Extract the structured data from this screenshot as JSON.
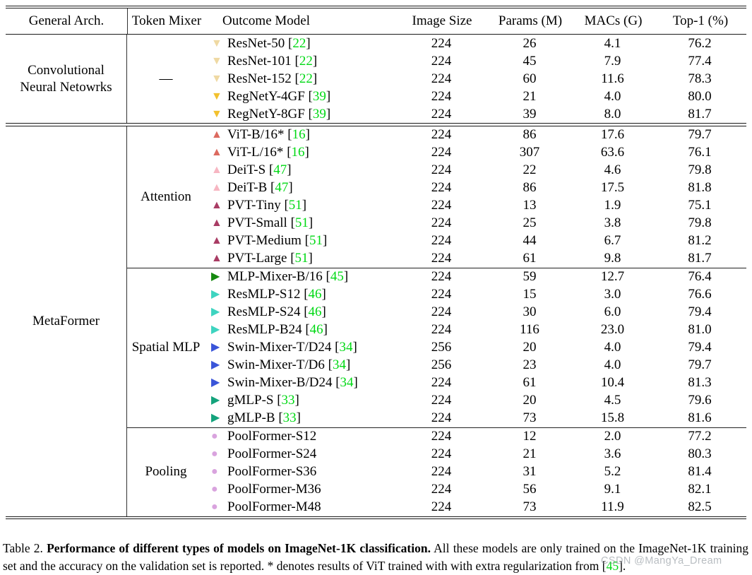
{
  "table": {
    "header": {
      "cells": [
        "General Arch.",
        "Token Mixer",
        "Outcome Model",
        "Image Size",
        "Params (M)",
        "MACs (G)",
        "Top-1 (%)"
      ]
    },
    "groups": [
      {
        "arch": "Convolutional Neural Netowrks",
        "subgroups": [
          {
            "mixer": "—",
            "rows": [
              {
                "marker": "triangle-down",
                "color": "#efd9a3",
                "model": "ResNet-50",
                "cite": "22",
                "size": "224",
                "params": "26",
                "macs": "4.1",
                "top1": "76.2"
              },
              {
                "marker": "triangle-down",
                "color": "#efd9a3",
                "model": "ResNet-101",
                "cite": "22",
                "size": "224",
                "params": "45",
                "macs": "7.9",
                "top1": "77.4"
              },
              {
                "marker": "triangle-down",
                "color": "#efd9a3",
                "model": "ResNet-152",
                "cite": "22",
                "size": "224",
                "params": "60",
                "macs": "11.6",
                "top1": "78.3"
              },
              {
                "marker": "triangle-down",
                "color": "#f2c12e",
                "model": "RegNetY-4GF",
                "cite": "39",
                "size": "224",
                "params": "21",
                "macs": "4.0",
                "top1": "80.0"
              },
              {
                "marker": "triangle-down",
                "color": "#f2c12e",
                "model": "RegNetY-8GF",
                "cite": "39",
                "size": "224",
                "params": "39",
                "macs": "8.0",
                "top1": "81.7"
              }
            ]
          }
        ]
      },
      {
        "arch": "MetaFormer",
        "subgroups": [
          {
            "mixer": "Attention",
            "rows": [
              {
                "marker": "triangle-up",
                "color": "#dc6a5f",
                "model": "ViT-B/16*",
                "cite": "16",
                "size": "224",
                "params": "86",
                "macs": "17.6",
                "top1": "79.7"
              },
              {
                "marker": "triangle-up",
                "color": "#dc6a5f",
                "model": "ViT-L/16*",
                "cite": "16",
                "size": "224",
                "params": "307",
                "macs": "63.6",
                "top1": "76.1"
              },
              {
                "marker": "triangle-up",
                "color": "#f7b6c2",
                "model": "DeiT-S",
                "cite": "47",
                "size": "224",
                "params": "22",
                "macs": "4.6",
                "top1": "79.8"
              },
              {
                "marker": "triangle-up",
                "color": "#f7b6c2",
                "model": "DeiT-B",
                "cite": "47",
                "size": "224",
                "params": "86",
                "macs": "17.5",
                "top1": "81.8"
              },
              {
                "marker": "triangle-up",
                "color": "#a93c64",
                "model": "PVT-Tiny",
                "cite": "51",
                "size": "224",
                "params": "13",
                "macs": "1.9",
                "top1": "75.1"
              },
              {
                "marker": "triangle-up",
                "color": "#a93c64",
                "model": "PVT-Small",
                "cite": "51",
                "size": "224",
                "params": "25",
                "macs": "3.8",
                "top1": "79.8"
              },
              {
                "marker": "triangle-up",
                "color": "#a93c64",
                "model": "PVT-Medium",
                "cite": "51",
                "size": "224",
                "params": "44",
                "macs": "6.7",
                "top1": "81.2"
              },
              {
                "marker": "triangle-up",
                "color": "#a93c64",
                "model": "PVT-Large",
                "cite": "51",
                "size": "224",
                "params": "61",
                "macs": "9.8",
                "top1": "81.7"
              }
            ]
          },
          {
            "mixer": "Spatial MLP",
            "rows": [
              {
                "marker": "triangle-right",
                "color": "#16890f",
                "model": "MLP-Mixer-B/16",
                "cite": "45",
                "size": "224",
                "params": "59",
                "macs": "12.7",
                "top1": "76.4"
              },
              {
                "marker": "triangle-right",
                "color": "#3ed4c0",
                "model": "ResMLP-S12",
                "cite": "46",
                "size": "224",
                "params": "15",
                "macs": "3.0",
                "top1": "76.6"
              },
              {
                "marker": "triangle-right",
                "color": "#3ed4c0",
                "model": "ResMLP-S24",
                "cite": "46",
                "size": "224",
                "params": "30",
                "macs": "6.0",
                "top1": "79.4"
              },
              {
                "marker": "triangle-right",
                "color": "#3ed4c0",
                "model": "ResMLP-B24",
                "cite": "46",
                "size": "224",
                "params": "116",
                "macs": "23.0",
                "top1": "81.0"
              },
              {
                "marker": "triangle-right",
                "color": "#3a55d9",
                "model": "Swin-Mixer-T/D24",
                "cite": "34",
                "size": "256",
                "params": "20",
                "macs": "4.0",
                "top1": "79.4"
              },
              {
                "marker": "triangle-right",
                "color": "#3a55d9",
                "model": "Swin-Mixer-T/D6",
                "cite": "34",
                "size": "256",
                "params": "23",
                "macs": "4.0",
                "top1": "79.7"
              },
              {
                "marker": "triangle-right",
                "color": "#3a55d9",
                "model": "Swin-Mixer-B/D24",
                "cite": "34",
                "size": "224",
                "params": "61",
                "macs": "10.4",
                "top1": "81.3"
              },
              {
                "marker": "triangle-right",
                "color": "#14a37c",
                "model": "gMLP-S",
                "cite": "33",
                "size": "224",
                "params": "20",
                "macs": "4.5",
                "top1": "79.6"
              },
              {
                "marker": "triangle-right",
                "color": "#14a37c",
                "model": "gMLP-B",
                "cite": "33",
                "size": "224",
                "params": "73",
                "macs": "15.8",
                "top1": "81.6"
              }
            ]
          },
          {
            "mixer": "Pooling",
            "rows": [
              {
                "marker": "circle",
                "color": "#d9a3de",
                "model": "PoolFormer-S12",
                "cite": "",
                "size": "224",
                "params": "12",
                "macs": "2.0",
                "top1": "77.2"
              },
              {
                "marker": "circle",
                "color": "#d9a3de",
                "model": "PoolFormer-S24",
                "cite": "",
                "size": "224",
                "params": "21",
                "macs": "3.6",
                "top1": "80.3"
              },
              {
                "marker": "circle",
                "color": "#d9a3de",
                "model": "PoolFormer-S36",
                "cite": "",
                "size": "224",
                "params": "31",
                "macs": "5.2",
                "top1": "81.4"
              },
              {
                "marker": "circle",
                "color": "#d9a3de",
                "model": "PoolFormer-M36",
                "cite": "",
                "size": "224",
                "params": "56",
                "macs": "9.1",
                "top1": "82.1"
              },
              {
                "marker": "circle",
                "color": "#d9a3de",
                "model": "PoolFormer-M48",
                "cite": "",
                "size": "224",
                "params": "73",
                "macs": "11.9",
                "top1": "82.5"
              }
            ]
          }
        ]
      }
    ]
  },
  "caption": {
    "label": "Table 2. ",
    "bold": "Performance of different types of models on ImageNet-1K classification.",
    "rest": " All these models are only trained on the ImageNet-1K training set and the accuracy on the validation set is reported. * denotes results of ViT trained with with extra regularization from [",
    "cite": "45",
    "end": "]."
  },
  "watermark": "CSDN @MangYa_Dream",
  "colors": {
    "citation_green": "#00d914",
    "rule_black": "#1a1a1a",
    "watermark_gray": "#8d959c"
  }
}
